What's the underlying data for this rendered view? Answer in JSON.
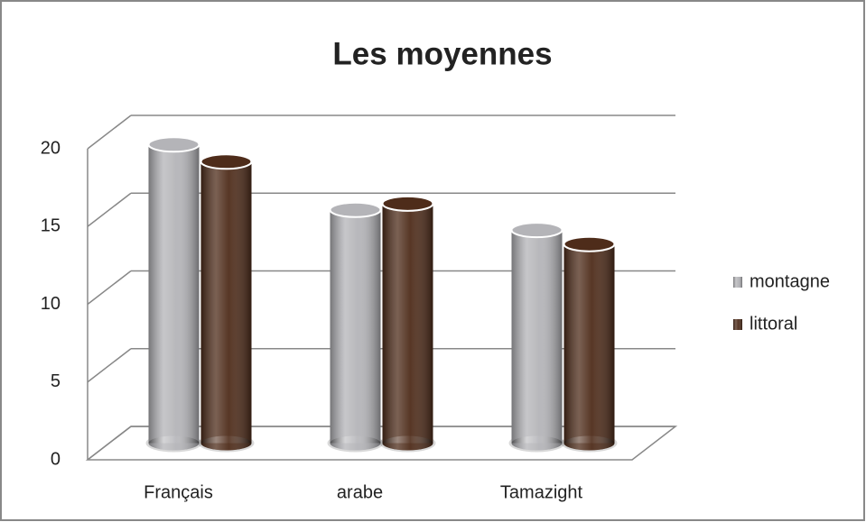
{
  "chart_data": {
    "type": "bar3d",
    "title": "Les moyennes",
    "categories": [
      "Français",
      "arabe",
      "Tamazight"
    ],
    "series": [
      {
        "name": "montagne",
        "color": "#b4b4b8",
        "values": [
          19.2,
          15.0,
          13.7
        ]
      },
      {
        "name": "littoral",
        "color": "#4e2c1a",
        "values": [
          18.1,
          15.4,
          12.8
        ]
      }
    ],
    "ylim": [
      0,
      20
    ],
    "yticks": [
      0,
      5,
      10,
      15,
      20
    ],
    "grid": true,
    "legend": "right"
  }
}
